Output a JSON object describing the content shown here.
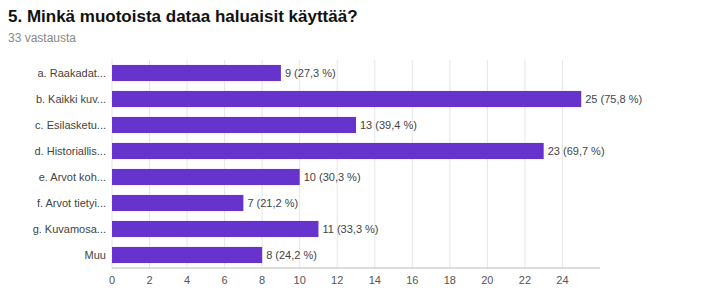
{
  "chart_data": {
    "type": "bar",
    "orientation": "horizontal",
    "title": "5. Minkä muotoista dataa haluaisit käyttää?",
    "subtitle": "33 vastausta",
    "categories": [
      "a. Raakadat...",
      "b. Kaikki kuv...",
      "c. Esilasketu...",
      "d. Historiallis...",
      "e. Arvot koh...",
      "f. Arvot tietyi...",
      "g. Kuvamosa...",
      "Muu"
    ],
    "values": [
      9,
      25,
      13,
      23,
      10,
      7,
      11,
      8
    ],
    "value_labels": [
      "9 (27,3 %)",
      "25 (75,8 %)",
      "13 (39,4 %)",
      "23 (69,7 %)",
      "10 (30,3 %)",
      "7 (21,2 %)",
      "11 (33,3 %)",
      "8 (24,2 %)"
    ],
    "data_labels": true,
    "color": "#6633cc",
    "xlim": [
      0,
      26
    ],
    "xticks": [
      0,
      2,
      4,
      6,
      8,
      10,
      12,
      14,
      16,
      18,
      20,
      22,
      24
    ],
    "grid": true
  }
}
